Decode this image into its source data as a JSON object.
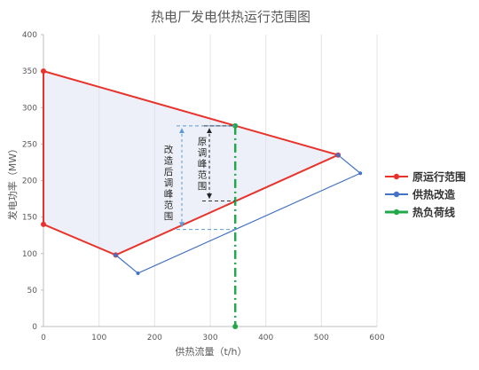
{
  "chart_data": {
    "type": "line",
    "title": "热电厂发电供热运行范围图",
    "xlabel": "供热流量（t/h）",
    "ylabel": "发电功率（MW）",
    "xlim": [
      0,
      600
    ],
    "ylim": [
      0,
      400
    ],
    "xticks": [
      0,
      100,
      200,
      300,
      400,
      500,
      600
    ],
    "yticks": [
      0,
      50,
      100,
      150,
      200,
      250,
      300,
      350,
      400
    ],
    "grid": "vertical",
    "legend_position": "right",
    "series": [
      {
        "name": "原运行范围",
        "color": "#e8332c",
        "points": [
          [
            0,
            350
          ],
          [
            530,
            235
          ],
          [
            130,
            98
          ],
          [
            0,
            140
          ],
          [
            0,
            350
          ]
        ]
      },
      {
        "name": "供热改造",
        "color": "#4472c4",
        "points": [
          [
            130,
            98
          ],
          [
            170,
            73
          ],
          [
            570,
            210
          ],
          [
            530,
            235
          ]
        ]
      },
      {
        "name": "热负荷线",
        "color": "#22a84a",
        "points": [
          [
            345,
            275
          ],
          [
            345,
            0
          ]
        ]
      }
    ],
    "annotations": {
      "original_range_label": "原调峰范围",
      "modified_range_label": "改造后调峰范围",
      "original_range": [
        275,
        172
      ],
      "modified_range": [
        275,
        133
      ],
      "x_at": 345
    }
  }
}
